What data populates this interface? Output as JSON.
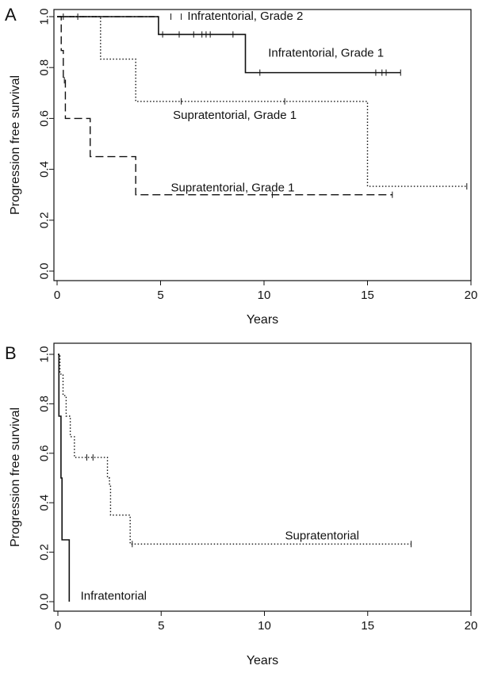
{
  "chart_data": [
    {
      "panel_label": "A",
      "type": "line",
      "subtype": "kaplan-meier step",
      "xlabel": "Years",
      "ylabel": "Progression free survival",
      "xlim": [
        0,
        20
      ],
      "ylim": [
        0,
        1
      ],
      "x_ticks": [
        "0",
        "5",
        "10",
        "15",
        "20"
      ],
      "y_ticks": [
        "0.0",
        "0.2",
        "0.4",
        "0.6",
        "0.8",
        "1.0"
      ],
      "series": [
        {
          "name": "Infratentorial, Grade 2",
          "style": "dash-dot",
          "steps": [
            [
              0,
              1.0
            ],
            [
              4.9,
              1.0
            ]
          ],
          "censor_x": [
            0.3,
            1.0,
            5.5,
            6.0
          ]
        },
        {
          "name": "Infratentorial, Grade 1",
          "style": "solid",
          "steps": [
            [
              0,
              1.0
            ],
            [
              4.9,
              0.93
            ],
            [
              9.1,
              0.78
            ],
            [
              16.6,
              0.78
            ]
          ],
          "censor_x": [
            5.1,
            5.9,
            6.6,
            7.0,
            7.2,
            7.4,
            8.5,
            9.8,
            15.4,
            15.7,
            15.9,
            16.6
          ]
        },
        {
          "name": "Supratentorial, Grade 1",
          "style": "dotted",
          "steps": [
            [
              0,
              1.0
            ],
            [
              2.1,
              0.833
            ],
            [
              3.8,
              0.667
            ],
            [
              15.0,
              0.333
            ],
            [
              19.8,
              0.333
            ]
          ],
          "censor_x": [
            6.0,
            11.0,
            19.8
          ]
        },
        {
          "name": "Supratentorial, Grade 1",
          "style": "dashed",
          "steps": [
            [
              0,
              1.0
            ],
            [
              0.2,
              0.867
            ],
            [
              0.3,
              0.75
            ],
            [
              0.4,
              0.6
            ],
            [
              1.6,
              0.45
            ],
            [
              3.8,
              0.3
            ],
            [
              16.2,
              0.3
            ]
          ],
          "censor_x": [
            0.35,
            10.4,
            16.2
          ]
        }
      ],
      "annotations": [
        {
          "text": "Infratentorial, Grade 2",
          "x": 6.3,
          "y": 1.0
        },
        {
          "text": "Infratentorial, Grade 1",
          "x": 10.2,
          "y": 0.855
        },
        {
          "text": "Supratentorial, Grade 1",
          "x": 5.6,
          "y": 0.61
        },
        {
          "text": "Supratentorial, Grade 1",
          "x": 5.5,
          "y": 0.325
        }
      ]
    },
    {
      "panel_label": "B",
      "type": "line",
      "subtype": "kaplan-meier step",
      "xlabel": "Years",
      "ylabel": "Progression free survival",
      "xlim": [
        0,
        20
      ],
      "ylim": [
        0,
        1
      ],
      "x_ticks": [
        "0",
        "5",
        "10",
        "15",
        "20"
      ],
      "y_ticks": [
        "0.0",
        "0.2",
        "0.4",
        "0.6",
        "0.8",
        "1.0"
      ],
      "series": [
        {
          "name": "Supratentorial",
          "style": "dotted",
          "steps": [
            [
              0,
              1.0
            ],
            [
              0.1,
              0.92
            ],
            [
              0.25,
              0.833
            ],
            [
              0.4,
              0.75
            ],
            [
              0.6,
              0.667
            ],
            [
              0.8,
              0.583
            ],
            [
              2.3,
              0.583
            ],
            [
              2.4,
              0.5
            ],
            [
              2.5,
              0.467
            ],
            [
              2.55,
              0.35
            ],
            [
              3.4,
              0.35
            ],
            [
              3.5,
              0.233
            ],
            [
              17.1,
              0.233
            ]
          ],
          "censor_x": [
            1.4,
            1.7,
            3.6,
            17.1
          ]
        },
        {
          "name": "Infratentorial",
          "style": "solid",
          "steps": [
            [
              0,
              1.0
            ],
            [
              0.05,
              0.75
            ],
            [
              0.15,
              0.5
            ],
            [
              0.2,
              0.25
            ],
            [
              0.55,
              0.25
            ],
            [
              0.55,
              0.0
            ]
          ],
          "censor_x": []
        }
      ],
      "annotations": [
        {
          "text": "Supratentorial",
          "x": 11.0,
          "y": 0.265
        },
        {
          "text": "Infratentorial",
          "x": 1.1,
          "y": 0.02
        }
      ]
    }
  ]
}
